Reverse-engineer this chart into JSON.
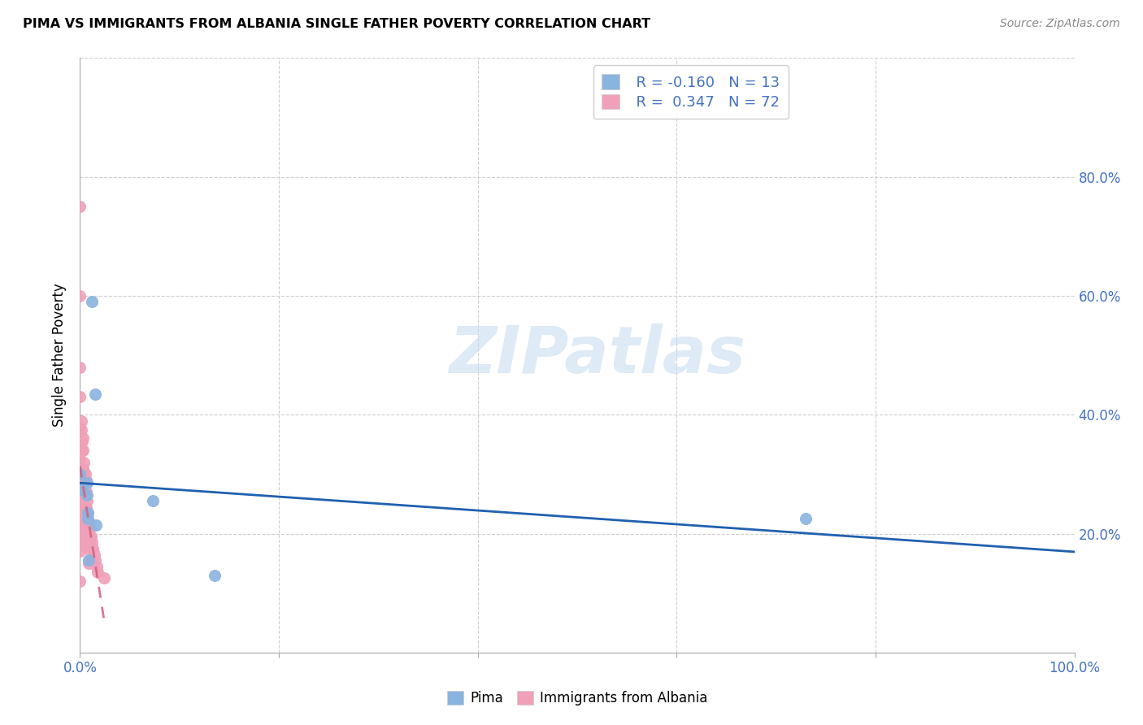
{
  "title": "PIMA VS IMMIGRANTS FROM ALBANIA SINGLE FATHER POVERTY CORRELATION CHART",
  "source": "Source: ZipAtlas.com",
  "ylabel": "Single Father Poverty",
  "xlim": [
    0.0,
    1.0
  ],
  "ylim": [
    0.0,
    1.0
  ],
  "right_yticks": [
    0.0,
    0.2,
    0.4,
    0.6,
    0.8
  ],
  "right_yticklabels": [
    "",
    "20.0%",
    "40.0%",
    "60.0%",
    "80.0%"
  ],
  "xtick_positions": [
    0.0,
    1.0
  ],
  "xticklabels": [
    "0.0%",
    "100.0%"
  ],
  "legend_r1": "R = -0.160",
  "legend_n1": "N = 13",
  "legend_r2": "R =  0.347",
  "legend_n2": "N = 72",
  "color_pima": "#8ab4e0",
  "color_albania": "#f0a0b8",
  "color_trendline_pima": "#2060b0",
  "color_trendline_albania": "#d06080",
  "pima_x": [
    0.0,
    0.001,
    0.007,
    0.007,
    0.008,
    0.008,
    0.009,
    0.012,
    0.015,
    0.016,
    0.073,
    0.135,
    0.73
  ],
  "pima_y": [
    0.3,
    0.275,
    0.285,
    0.265,
    0.235,
    0.225,
    0.155,
    0.59,
    0.435,
    0.215,
    0.255,
    0.13,
    0.225
  ],
  "albania_x": [
    0.0,
    0.0,
    0.0,
    0.0,
    0.0,
    0.0,
    0.0,
    0.0,
    0.0,
    0.0,
    0.0,
    0.0,
    0.0,
    0.0,
    0.0,
    0.0,
    0.0,
    0.0,
    0.0,
    0.0,
    0.001,
    0.001,
    0.001,
    0.001,
    0.002,
    0.002,
    0.002,
    0.002,
    0.002,
    0.002,
    0.003,
    0.003,
    0.003,
    0.003,
    0.003,
    0.003,
    0.003,
    0.003,
    0.004,
    0.004,
    0.004,
    0.004,
    0.004,
    0.005,
    0.005,
    0.005,
    0.005,
    0.005,
    0.006,
    0.006,
    0.006,
    0.006,
    0.007,
    0.007,
    0.008,
    0.008,
    0.009,
    0.009,
    0.009,
    0.009,
    0.01,
    0.01,
    0.01,
    0.011,
    0.012,
    0.012,
    0.013,
    0.014,
    0.015,
    0.017,
    0.018,
    0.024
  ],
  "albania_y": [
    0.75,
    0.6,
    0.48,
    0.43,
    0.38,
    0.35,
    0.325,
    0.3,
    0.28,
    0.265,
    0.25,
    0.24,
    0.235,
    0.22,
    0.21,
    0.2,
    0.19,
    0.18,
    0.17,
    0.12,
    0.39,
    0.375,
    0.355,
    0.29,
    0.355,
    0.34,
    0.3,
    0.285,
    0.27,
    0.22,
    0.36,
    0.34,
    0.31,
    0.295,
    0.285,
    0.265,
    0.245,
    0.19,
    0.32,
    0.305,
    0.285,
    0.265,
    0.21,
    0.3,
    0.285,
    0.265,
    0.245,
    0.195,
    0.29,
    0.27,
    0.245,
    0.18,
    0.255,
    0.19,
    0.235,
    0.175,
    0.22,
    0.205,
    0.185,
    0.15,
    0.21,
    0.19,
    0.155,
    0.195,
    0.185,
    0.155,
    0.175,
    0.165,
    0.155,
    0.145,
    0.135,
    0.125
  ],
  "watermark_text": "ZIPatlas",
  "watermark_color": "#c8ddf0",
  "background_color": "#ffffff",
  "grid_color": "#d0d0d0"
}
